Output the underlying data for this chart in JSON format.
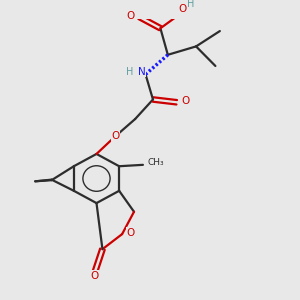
{
  "bg_color": "#e8e8e8",
  "bond_color": "#2d2d2d",
  "oxygen_color": "#cc0000",
  "nitrogen_color": "#1a1aff",
  "teal_color": "#5f9ea0",
  "fig_w": 3.0,
  "fig_h": 3.0,
  "dpi": 100,
  "xlim": [
    0,
    10
  ],
  "ylim": [
    0,
    10
  ]
}
